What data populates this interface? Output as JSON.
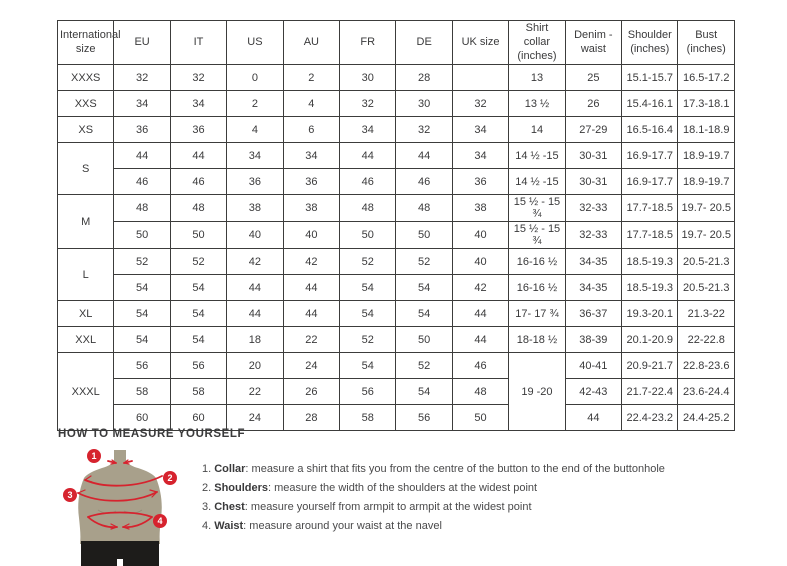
{
  "colors": {
    "accent_red": "#d6232e",
    "mannequin_olive": "#a8a08b",
    "shorts_black": "#1d1c1a",
    "border_dark": "#3c3c3b",
    "text": "#3a3a3b"
  },
  "table": {
    "headers": [
      "International size",
      "EU",
      "IT",
      "US",
      "AU",
      "FR",
      "DE",
      "UK size",
      "Shirt collar (inches)",
      "Denim - waist",
      "Shoulder (inches)",
      "Bust (inches)"
    ],
    "groups": [
      {
        "size": "XXXS",
        "rows": [
          [
            "32",
            "32",
            "0",
            "2",
            "30",
            "28",
            "",
            "13",
            "25",
            "15.1-15.7",
            "16.5-17.2"
          ]
        ]
      },
      {
        "size": "XXS",
        "rows": [
          [
            "34",
            "34",
            "2",
            "4",
            "32",
            "30",
            "32",
            "13 ½",
            "26",
            "15.4-16.1",
            "17.3-18.1"
          ]
        ]
      },
      {
        "size": "XS",
        "rows": [
          [
            "36",
            "36",
            "4",
            "6",
            "34",
            "32",
            "34",
            "14",
            "27-29",
            "16.5-16.4",
            "18.1-18.9"
          ]
        ]
      },
      {
        "size": "S",
        "rows": [
          [
            "44",
            "44",
            "34",
            "34",
            "44",
            "44",
            "34",
            "14 ½ -15",
            "30-31",
            "16.9-17.7",
            "18.9-19.7"
          ],
          [
            "46",
            "46",
            "36",
            "36",
            "46",
            "46",
            "36",
            "14 ½ -15",
            "30-31",
            "16.9-17.7",
            "18.9-19.7"
          ]
        ]
      },
      {
        "size": "M",
        "rows": [
          [
            "48",
            "48",
            "38",
            "38",
            "48",
            "48",
            "38",
            "15 ½ - 15 ¾",
            "32-33",
            "17.7-18.5",
            "19.7- 20.5"
          ],
          [
            "50",
            "50",
            "40",
            "40",
            "50",
            "50",
            "40",
            "15 ½ - 15 ¾",
            "32-33",
            "17.7-18.5",
            "19.7- 20.5"
          ]
        ]
      },
      {
        "size": "L",
        "rows": [
          [
            "52",
            "52",
            "42",
            "42",
            "52",
            "52",
            "40",
            "16-16 ½",
            "34-35",
            "18.5-19.3",
            "20.5-21.3"
          ],
          [
            "54",
            "54",
            "44",
            "44",
            "54",
            "54",
            "42",
            "16-16 ½",
            "34-35",
            "18.5-19.3",
            "20.5-21.3"
          ]
        ]
      },
      {
        "size": "XL",
        "rows": [
          [
            "54",
            "54",
            "44",
            "44",
            "54",
            "54",
            "44",
            "17- 17 ¾",
            "36-37",
            "19.3-20.1",
            "21.3-22"
          ]
        ]
      },
      {
        "size": "XXL",
        "rows": [
          [
            "54",
            "54",
            "18",
            "22",
            "52",
            "50",
            "44",
            "18-18 ½",
            "38-39",
            "20.1-20.9",
            "22-22.8"
          ]
        ]
      },
      {
        "size": "XXXL",
        "collar": "19 -20",
        "rows": [
          [
            "56",
            "56",
            "20",
            "24",
            "54",
            "52",
            "46",
            "40-41",
            "20.9-21.7",
            "22.8-23.6"
          ],
          [
            "58",
            "58",
            "22",
            "26",
            "56",
            "54",
            "48",
            "42-43",
            "21.7-22.4",
            "23.6-24.4"
          ],
          [
            "60",
            "60",
            "24",
            "28",
            "58",
            "56",
            "50",
            "44",
            "22.4-23.2",
            "24.4-25.2"
          ]
        ]
      }
    ]
  },
  "measure": {
    "title": "HOW TO MEASURE YOURSELF",
    "badge_numbers": [
      "1",
      "2",
      "3",
      "4"
    ],
    "items": [
      {
        "num": "1.",
        "label": "Collar",
        "text": ": measure a shirt that fits you from the centre of the button to the end of the buttonhole"
      },
      {
        "num": "2.",
        "label": "Shoulders",
        "text": ": measure the width of the shoulders at the widest point"
      },
      {
        "num": "3.",
        "label": "Chest",
        "text": ": measure yourself from armpit to armpit at the widest point"
      },
      {
        "num": "4.",
        "label": "Waist",
        "text": ": measure around your waist at the navel"
      }
    ]
  }
}
